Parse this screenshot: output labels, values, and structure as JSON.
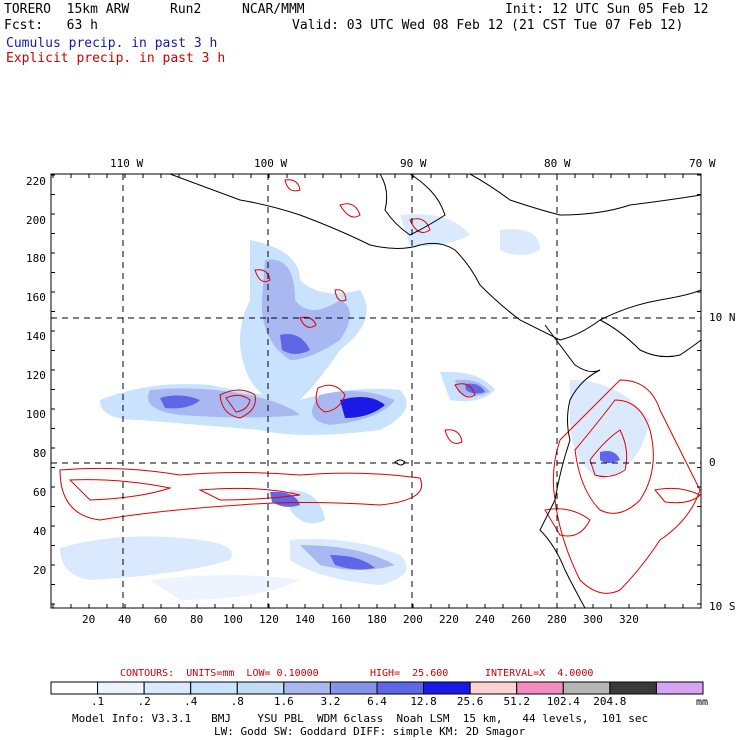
{
  "header": {
    "model": "TORERO  15km ARW",
    "run": "Run2",
    "org": "NCAR/MMM",
    "init": "Init: 12 UTC Sun 05 Feb 12",
    "fcst": "Fcst:   63 h",
    "valid": "Valid: 03 UTC Wed 08 Feb 12 (21 CST Tue 07 Feb 12)"
  },
  "legend": {
    "cumulus": "Cumulus precip. in past 3 h",
    "explicit": "Explicit precip. in past 3 h"
  },
  "map": {
    "lon_labels": [
      "110 W",
      "100 W",
      "90 W",
      "80 W",
      "70 W"
    ],
    "lat_labels": [
      "10 N",
      "0",
      "10 S"
    ],
    "y_ticks": [
      "220",
      "200",
      "180",
      "160",
      "140",
      "120",
      "100",
      "80",
      "60",
      "40",
      "20"
    ],
    "x_ticks": [
      "20",
      "40",
      "60",
      "80",
      "100",
      "120",
      "140",
      "160",
      "180",
      "200",
      "220",
      "240",
      "260",
      "280",
      "300",
      "320"
    ]
  },
  "contours": {
    "units": "CONTOURS:  UNITS=mm  LOW= 0.10000",
    "high": "HIGH=  25.600",
    "interval": "INTERVAL=X  4.0000"
  },
  "colorbar": {
    "labels": [
      ".1",
      ".2",
      ".4",
      ".8",
      "1.6",
      "3.2",
      "6.4",
      "12.8",
      "25.6",
      "51.2",
      "102.4",
      "204.8"
    ],
    "unit": "mm",
    "colors": [
      "#ffffff",
      "#eef4ff",
      "#dbe9ff",
      "#c9e3ff",
      "#c4dcf6",
      "#a9b8f0",
      "#8593ea",
      "#5f66e8",
      "#1a1ae6",
      "#ffd2d2",
      "#f58cc0",
      "#b5b5b5",
      "#3a3a3a",
      "#d6a6f5"
    ]
  },
  "model_info": {
    "line1": "Model Info: V3.3.1   BMJ    YSU PBL  WDM 6class  Noah LSM  15 km,   44 levels,  101 sec",
    "line2": "LW: Godd SW: Goddard DIFF: simple KM: 2D Smagor"
  }
}
